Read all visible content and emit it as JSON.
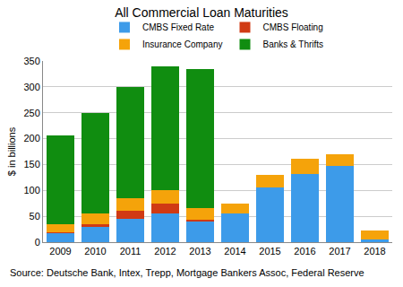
{
  "chart_data": {
    "type": "bar",
    "title": "All Commercial Loan Maturities",
    "y_label": "$ in billions",
    "annotations": [
      "Source: Deutsche Bank, Intex, Trepp, Mortgage Bankers Assoc, Federal Reserve"
    ],
    "categories": [
      "2009",
      "2010",
      "2011",
      "2012",
      "2013",
      "2014",
      "2015",
      "2016",
      "2017",
      "2018"
    ],
    "series": [
      {
        "name": "CMBS Fixed Rate",
        "color": "#3d9be9",
        "values": [
          17,
          30,
          45,
          55,
          40,
          55,
          105,
          132,
          148,
          5
        ]
      },
      {
        "name": "CMBS Floating",
        "color": "#d03a14",
        "values": [
          2,
          5,
          15,
          20,
          3,
          0,
          0,
          0,
          0,
          0
        ]
      },
      {
        "name": "Insurance Company",
        "color": "#f5a30a",
        "values": [
          15,
          20,
          25,
          25,
          22,
          20,
          25,
          30,
          22,
          18
        ]
      },
      {
        "name": "Banks & Thrifts",
        "color": "#108d10",
        "values": [
          173,
          195,
          215,
          240,
          270,
          0,
          0,
          0,
          0,
          0
        ]
      }
    ],
    "stacked": true,
    "ylim": [
      0,
      350
    ],
    "yticks": [
      0,
      50,
      100,
      150,
      200,
      250,
      300,
      350
    ],
    "grid": true,
    "legend": "top"
  }
}
